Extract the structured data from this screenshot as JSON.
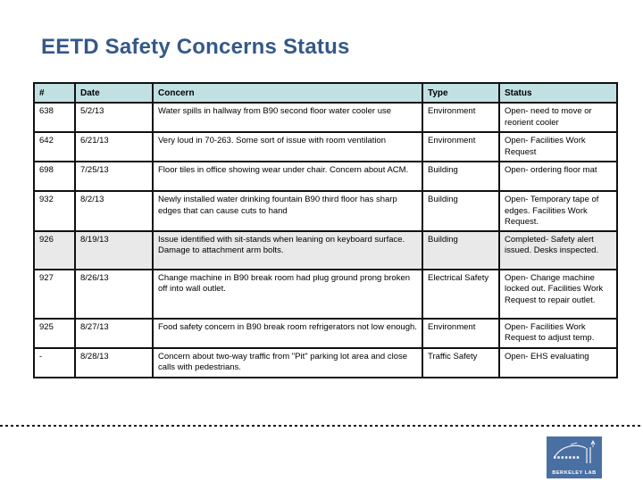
{
  "title": "EETD Safety Concerns Status",
  "colors": {
    "title_text": "#35588a",
    "header_bg": "#c1e0e1",
    "highlight_row_bg": "#e9e9e9",
    "table_border": "#111111",
    "logo_bg": "#4a70a3"
  },
  "table": {
    "headers": [
      "#",
      "Date",
      "Concern",
      "Type",
      "Status"
    ],
    "rows": [
      {
        "id": "638",
        "date": "5/2/13",
        "concern": "Water spills in hallway from B90 second floor water cooler use",
        "type": "Environment",
        "status": "Open- need to move or reorient cooler",
        "highlighted": false
      },
      {
        "id": "642",
        "date": "6/21/13",
        "concern": "Very loud in 70-263. Some sort of issue with room ventilation",
        "type": "Environment",
        "status": "Open- Facilities Work Request",
        "highlighted": false
      },
      {
        "id": "698",
        "date": "7/25/13",
        "concern": "Floor tiles in office showing wear under chair. Concern about ACM.",
        "type": "Building",
        "status": "Open- ordering floor mat",
        "highlighted": false
      },
      {
        "id": "932",
        "date": "8/2/13",
        "concern": "Newly installed water drinking fountain B90 third floor has sharp edges that can cause cuts to hand",
        "type": "Building",
        "status": "Open- Temporary tape of edges. Facilities Work Request.",
        "highlighted": false
      },
      {
        "id": "926",
        "date": "8/19/13",
        "concern": "Issue identified with sit-stands when leaning on keyboard surface. Damage to attachment arm bolts.",
        "type": "Building",
        "status": "Completed- Safety alert issued. Desks inspected.",
        "highlighted": true
      },
      {
        "id": "927",
        "date": "8/26/13",
        "concern": "Change machine in B90 break room had plug ground prong broken off into wall outlet.",
        "type": "Electrical Safety",
        "status": "Open- Change machine locked out. Facilities Work Request to repair outlet.",
        "highlighted": false
      },
      {
        "id": "925",
        "date": "8/27/13",
        "concern": "Food safety concern in B90 break room refrigerators not low enough.",
        "type": "Environment",
        "status": "Open- Facilities Work Request to adjust temp.",
        "highlighted": false
      },
      {
        "id": "-",
        "date": "8/28/13",
        "concern": "Concern about two-way traffic from \"Pit\" parking lot area and close calls with pedestrians.",
        "type": "Traffic Safety",
        "status": "Open- EHS evaluating",
        "highlighted": false
      }
    ]
  },
  "logo": {
    "text": "BERKELEY LAB"
  }
}
